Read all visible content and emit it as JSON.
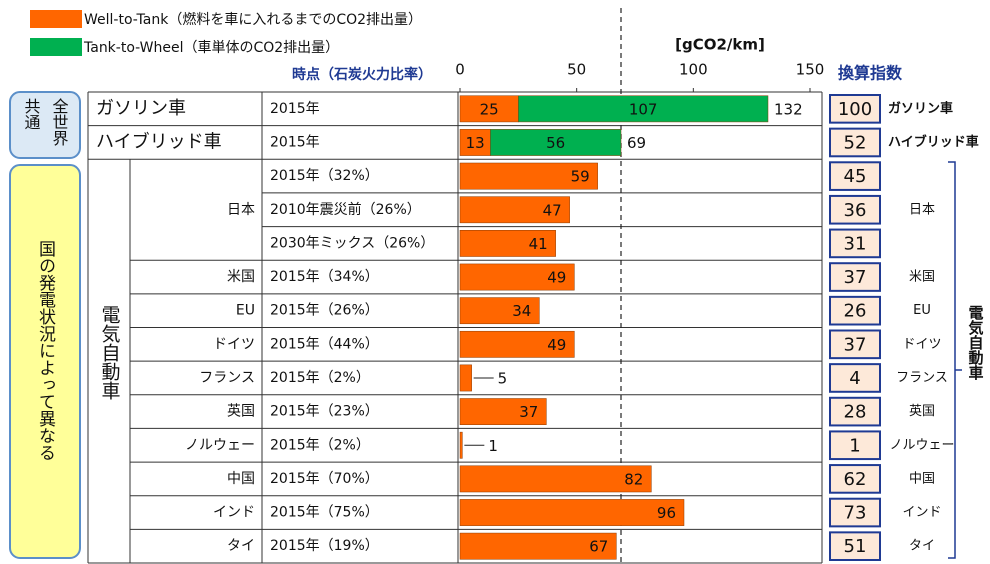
{
  "chart_data": {
    "type": "stacked-bar-horizontal",
    "unit": "[gCO2/km]",
    "time_header": "時点（石炭火力比率）",
    "index_header": "換算指数",
    "common_group": [
      "共通",
      "全世界"
    ],
    "country_group": "国の発電状況によって異なる",
    "ev_group": "電気自動車",
    "vehicles": [
      "ガソリン車",
      "ハイブリッド車"
    ],
    "countries": [
      null,
      null,
      null,
      "日本",
      null,
      "米国",
      "EU",
      "ドイツ",
      "フランス",
      "英国",
      "ノルウェー",
      "中国",
      "インド",
      "タイ"
    ],
    "categories": [
      "2015年",
      "2015年",
      "2015年（32%）",
      "2010年震災前（26%）",
      "2030年ミックス（26%）",
      "2015年（34%）",
      "2015年（26%）",
      "2015年（44%）",
      "2015年（2%）",
      "2015年（23%）",
      "2015年（2%）",
      "2015年（70%）",
      "2015年（75%）",
      "2015年（19%）"
    ],
    "xlim": [
      0,
      150
    ],
    "xticks": [
      0,
      50,
      100,
      150
    ],
    "series": [
      {
        "name": "Well-to-Tank（燃料を車に入れるまでのCO2排出量）",
        "color": "#ff6600",
        "values": [
          25,
          13,
          59,
          47,
          41,
          49,
          34,
          49,
          5,
          37,
          1,
          82,
          96,
          67
        ]
      },
      {
        "name": "Tank-to-Wheel（車単体のCO2排出量）",
        "color": "#00b050",
        "values": [
          107,
          56,
          null,
          null,
          null,
          null,
          null,
          null,
          null,
          null,
          null,
          null,
          null,
          null
        ]
      }
    ],
    "totals": [
      132,
      69,
      null,
      null,
      null,
      null,
      null,
      null,
      null,
      null,
      null,
      null,
      null,
      null
    ],
    "index": [
      100,
      52,
      45,
      36,
      31,
      37,
      26,
      37,
      4,
      28,
      1,
      62,
      73,
      51
    ],
    "index_labels": [
      "ガソリン車",
      "ハイブリッド車",
      null,
      "日本",
      null,
      "米国",
      "EU",
      "ドイツ",
      "フランス",
      "英国",
      "ノルウェー",
      "中国",
      "インド",
      "タイ"
    ]
  }
}
